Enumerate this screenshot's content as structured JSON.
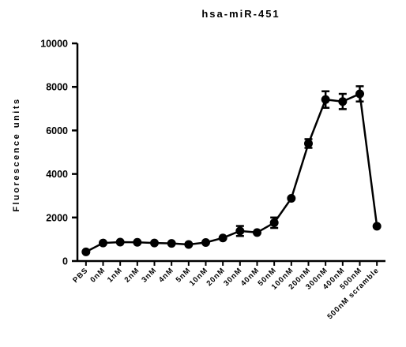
{
  "chart_data": {
    "type": "line",
    "title": "hsa-miR-451",
    "xlabel": "",
    "ylabel": "Fluorescence units",
    "ylim": [
      0,
      10000
    ],
    "yticks": [
      "0",
      "2000",
      "4000",
      "6000",
      "8000",
      "10000"
    ],
    "grid": false,
    "categories": [
      "PBS",
      "0nM",
      "1nM",
      "2nM",
      "3nM",
      "4nM",
      "5nM",
      "10nM",
      "20nM",
      "30nM",
      "40nM",
      "50nM",
      "100nM",
      "200nM",
      "300nM",
      "400nM",
      "500nM",
      "500nM scramble"
    ],
    "series": [
      {
        "values": [
          420,
          830,
          870,
          860,
          830,
          810,
          760,
          850,
          1060,
          1380,
          1310,
          1760,
          2880,
          5400,
          7420,
          7330,
          7680,
          1600
        ],
        "errors": [
          0,
          0,
          0,
          0,
          0,
          0,
          0,
          0,
          0,
          230,
          0,
          240,
          0,
          200,
          380,
          350,
          350,
          0
        ]
      }
    ],
    "color": "#000000"
  }
}
